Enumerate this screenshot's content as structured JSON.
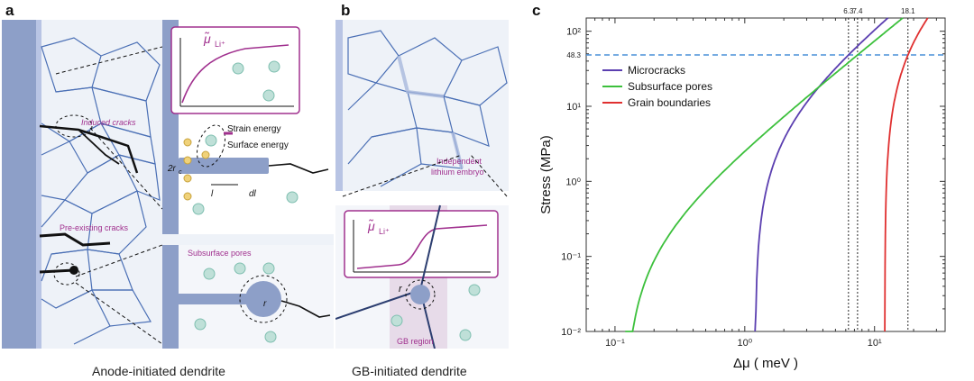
{
  "panels": {
    "a": {
      "label": "a",
      "caption": "Anode-initiated dendrite",
      "inset_formula": "μ̃",
      "inset_formula_sub": "Li⁺",
      "strain_label": "Strain energy",
      "surface_label": "Surface energy",
      "radius_label": "2r",
      "radius_sub": "c",
      "length_label": "l",
      "dl_label": "dl",
      "induced_cracks": "Induced cracks",
      "preexisting_cracks": "Pre-existing cracks",
      "subsurface_pores": "Subsurface pores",
      "pore_radius": "r",
      "pore_radius_sub": "c"
    },
    "b": {
      "label": "b",
      "caption": "GB-initiated dendrite",
      "embryo_line1": "Independent",
      "embryo_line2": "lithium embryo",
      "inset_formula": "μ̃",
      "inset_formula_sub": "Li⁺",
      "gb_region": "GB region",
      "radius_label": "r",
      "radius_sub": "c"
    },
    "c": {
      "label": "c"
    }
  },
  "chart_data": {
    "type": "line",
    "xscale": "log",
    "yscale": "log",
    "xlabel": "Δμ ( meV )",
    "ylabel": "Stress (MPa)",
    "xlim": [
      0.06,
      35
    ],
    "ylim": [
      0.01,
      150
    ],
    "x_ticks": [
      "10⁻¹",
      "10⁰",
      "10¹"
    ],
    "y_ticks": [
      "10⁻²",
      "10⁻¹",
      "10⁰",
      "10¹",
      "10²"
    ],
    "reference_line": {
      "y": 48.3,
      "label": "48.3",
      "color": "#4a90d9"
    },
    "vertical_markers": [
      {
        "x": 6.3,
        "label": "6.3"
      },
      {
        "x": 7.4,
        "label": "7.4"
      },
      {
        "x": 18.1,
        "label": "18.1"
      }
    ],
    "legend_position": "upper-left",
    "series": [
      {
        "name": "Microcracks",
        "color": "#5b3fb0",
        "x0": 1.2,
        "x_at_ref": 6.3
      },
      {
        "name": "Subsurface pores",
        "color": "#3cc03c",
        "x0": 0.12,
        "x_at_ref": 7.4
      },
      {
        "name": "Grain boundaries",
        "color": "#e03030",
        "x0": 12.0,
        "x_at_ref": 18.1
      }
    ]
  }
}
